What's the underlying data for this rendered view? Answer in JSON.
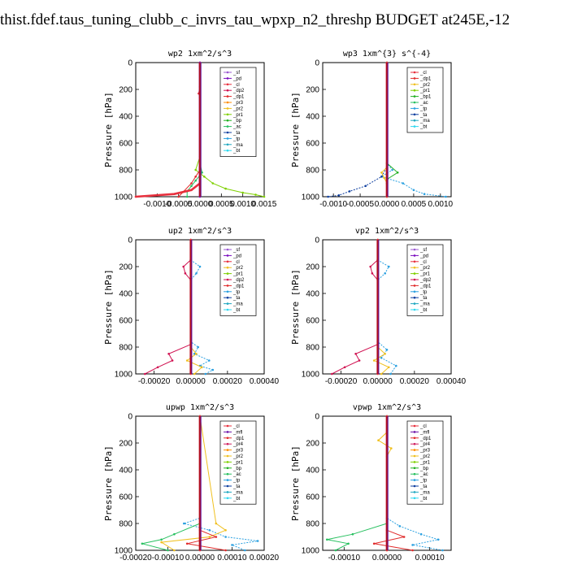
{
  "page": {
    "title": "thist.fdef.taus_tuning_clubb_c_invrs_tau_wpxp_n2_threshp  BUDGET at245E,-12"
  },
  "series_colors": {
    "_sf": "#9b59d0",
    "_pd": "#7a0dbf",
    "_cl": "#e8303e",
    "_dp2": "#d01050",
    "_dp1": "#e02a2a",
    "_pr3": "#ff8c00",
    "_pr2": "#f0c020",
    "_pr1": "#7fd000",
    "_bp": "#22b022",
    "_bp1": "#22b022",
    "_ac": "#28c060",
    "_tp": "#2aa0e0",
    "_ta": "#1040a0",
    "_ma": "#20a8c0",
    "_bt": "#30d8f0",
    "_mfl": "#6a10a8",
    "_pr4": "#d02060"
  },
  "chart_data": [
    {
      "type": "line",
      "title": "wp2  1xm^2/s^3",
      "ylabel": "Pressure [hPa]",
      "xlim": [
        -0.0015,
        0.0015
      ],
      "ylim": [
        1000,
        0
      ],
      "xticks": [
        -0.001,
        -0.0005,
        0.0,
        0.0005,
        0.001,
        0.0015
      ],
      "xtick_labels": [
        "-0.0010",
        "-0.0005",
        "0.0000",
        "0.0005",
        "0.0010",
        "0.0015"
      ],
      "yticks": [
        0,
        200,
        400,
        600,
        800,
        1000
      ],
      "legend": [
        "_sf",
        "_pd",
        "_cl",
        "_dp2",
        "_dp1",
        "_pr3",
        "_pr2",
        "_pr1",
        "_bp",
        "_ac",
        "_ta",
        "_tp",
        "_ma",
        "_bt"
      ],
      "legend_position": "top-right",
      "series": [
        {
          "name": "_pr1",
          "pressure": [
            0,
            700,
            800,
            850,
            900,
            940,
            970,
            985,
            1000
          ],
          "values": [
            0,
            0,
            -0.0001,
            0.0001,
            0.0003,
            0.0006,
            0.001,
            0.0013,
            0.0015
          ]
        },
        {
          "name": "_ac",
          "pressure": [
            0,
            750,
            820,
            880,
            920,
            960,
            1000
          ],
          "values": [
            0,
            0,
            5e-05,
            -0.0001,
            -0.0002,
            -0.0003,
            -0.0003
          ]
        },
        {
          "name": "_cl",
          "pressure": [
            0,
            800,
            900,
            950,
            980,
            1000
          ],
          "values": [
            0,
            0,
            0,
            -0.0002,
            -0.0006,
            -0.0015
          ]
        },
        {
          "name": "_dp1",
          "pressure": [
            0,
            180,
            230,
            260,
            800,
            850,
            900,
            1000
          ],
          "values": [
            0,
            0,
            -3e-05,
            0,
            0,
            -0.0001,
            -0.0002,
            -0.0005
          ]
        },
        {
          "name": "_pd",
          "pressure": [
            0,
            1000
          ],
          "values": [
            0,
            0
          ]
        }
      ]
    },
    {
      "type": "line",
      "title": "wp3  1xm^{3} s^{-4}",
      "ylabel": "Pressure [hPa]",
      "xlim": [
        -0.0012,
        0.0012
      ],
      "ylim": [
        1000,
        0
      ],
      "xticks": [
        -0.001,
        -0.0005,
        0.0,
        0.0005,
        0.001
      ],
      "xtick_labels": [
        "-0.0010",
        "-0.0005",
        "0.0000",
        "0.0005",
        "0.0010"
      ],
      "yticks": [
        0,
        200,
        400,
        600,
        800,
        1000
      ],
      "legend": [
        "_cl",
        "_dp1",
        "_pr2",
        "_pr1",
        "_bp1",
        "_ac",
        "_tp",
        "_ta",
        "_ma",
        "_bt"
      ],
      "legend_position": "top-right",
      "series": [
        {
          "name": "_tp",
          "pressure": [
            0,
            750,
            800,
            850,
            900,
            950,
            980,
            1000
          ],
          "values": [
            0,
            0,
            0.0001,
            -0.0001,
            0.0003,
            0.0005,
            0.0007,
            0.0011
          ]
        },
        {
          "name": "_ta",
          "pressure": [
            0,
            780,
            850,
            920,
            960,
            990,
            1000
          ],
          "values": [
            0,
            0,
            -0.0001,
            -0.0004,
            -0.0007,
            -0.0009,
            -0.0011
          ]
        },
        {
          "name": "_bp1",
          "pressure": [
            0,
            750,
            820,
            870,
            900,
            1000
          ],
          "values": [
            0,
            0,
            0.0002,
            0,
            0,
            0
          ]
        },
        {
          "name": "_pr2",
          "pressure": [
            0,
            780,
            820,
            860,
            900,
            1000
          ],
          "values": [
            0,
            0,
            -0.0001,
            -5e-05,
            0,
            0
          ]
        },
        {
          "name": "_cl",
          "pressure": [
            0,
            1000
          ],
          "values": [
            0,
            0
          ]
        }
      ]
    },
    {
      "type": "line",
      "title": "up2  1xm^2/s^3",
      "ylabel": "Pressure [hPa]",
      "xlim": [
        -0.0003,
        0.0004
      ],
      "ylim": [
        1000,
        0
      ],
      "xticks": [
        -0.0002,
        0.0,
        0.0002,
        0.0004
      ],
      "xtick_labels": [
        "-0.00020",
        "0.00000",
        "0.00020",
        "0.00040"
      ],
      "yticks": [
        0,
        200,
        400,
        600,
        800,
        1000
      ],
      "legend": [
        "_sf",
        "_pd",
        "_cl",
        "_pr2",
        "_pr1",
        "_dp2",
        "_dp1",
        "_tp",
        "_ta",
        "_ma",
        "_bt"
      ],
      "legend_position": "top-right",
      "series": [
        {
          "name": "_tp",
          "pressure": [
            0,
            150,
            200,
            250,
            300,
            760,
            800,
            850,
            900,
            940,
            970,
            1000
          ],
          "values": [
            0,
            0,
            5e-05,
            3e-05,
            0,
            0,
            4e-05,
            2e-05,
            0.0001,
            5e-05,
            0.00012,
            8e-05
          ]
        },
        {
          "name": "_dp2",
          "pressure": [
            0,
            150,
            200,
            250,
            300,
            780,
            850,
            900,
            950,
            1000
          ],
          "values": [
            0,
            0,
            -4e-05,
            -3e-05,
            0,
            0,
            -0.00012,
            -0.0001,
            -0.00018,
            -0.00025
          ]
        },
        {
          "name": "_pr2",
          "pressure": [
            0,
            800,
            850,
            900,
            950,
            1000
          ],
          "values": [
            0,
            0,
            3e-05,
            -2e-05,
            6e-05,
            2e-05
          ]
        },
        {
          "name": "_cl",
          "pressure": [
            0,
            1000
          ],
          "values": [
            0,
            0
          ]
        }
      ]
    },
    {
      "type": "line",
      "title": "vp2  1xm^2/s^3",
      "ylabel": "Pressure [hPa]",
      "xlim": [
        -0.0003,
        0.0004
      ],
      "ylim": [
        1000,
        0
      ],
      "xticks": [
        -0.0002,
        0.0,
        0.0002,
        0.0004
      ],
      "xtick_labels": [
        "-0.00020",
        "0.00000",
        "0.00020",
        "0.00040"
      ],
      "yticks": [
        0,
        200,
        400,
        600,
        800,
        1000
      ],
      "legend": [
        "_sf",
        "_pd",
        "_cl",
        "_pr2",
        "_pr1",
        "_dp2",
        "_dp1",
        "_tp",
        "_ta",
        "_ma",
        "_bt"
      ],
      "legend_position": "top-right",
      "series": [
        {
          "name": "_tp",
          "pressure": [
            0,
            150,
            200,
            250,
            300,
            760,
            820,
            880,
            940,
            1000
          ],
          "values": [
            0,
            0,
            6e-05,
            4e-05,
            0,
            0,
            5e-05,
            2e-05,
            0.0001,
            7e-05
          ]
        },
        {
          "name": "_dp2",
          "pressure": [
            0,
            150,
            200,
            250,
            300,
            780,
            850,
            900,
            950,
            1000
          ],
          "values": [
            0,
            0,
            -4e-05,
            -3e-05,
            0,
            0,
            -0.00012,
            -0.0001,
            -0.00018,
            -0.00025
          ]
        },
        {
          "name": "_pr2",
          "pressure": [
            0,
            800,
            850,
            900,
            950,
            1000
          ],
          "values": [
            0,
            0,
            4e-05,
            -2e-05,
            6e-05,
            2e-05
          ]
        },
        {
          "name": "_cl",
          "pressure": [
            0,
            1000
          ],
          "values": [
            0,
            0
          ]
        }
      ]
    },
    {
      "type": "line",
      "title": "upwp  1xm^2/s^3",
      "ylabel": "Pressure [hPa]",
      "xlim": [
        -0.0002,
        0.0002
      ],
      "ylim": [
        1000,
        0
      ],
      "xticks": [
        -0.0002,
        -0.0001,
        0.0,
        0.0001,
        0.0002
      ],
      "xtick_labels": [
        "-0.00020",
        "-0.00010",
        "0.00000",
        "0.00010",
        "0.00020"
      ],
      "yticks": [
        0,
        200,
        400,
        600,
        800,
        1000
      ],
      "legend": [
        "_cl",
        "_mfl",
        "_dp1",
        "_pr4",
        "_pr3",
        "_pr2",
        "_pr1",
        "_bp",
        "_ac",
        "_tp",
        "_ta",
        "_ma",
        "_bt"
      ],
      "legend_position": "top-right",
      "series": [
        {
          "name": "_tp",
          "pressure": [
            0,
            760,
            800,
            850,
            900,
            930,
            960,
            1000
          ],
          "values": [
            0,
            0,
            -5e-05,
            3e-05,
            8e-05,
            0.00018,
            0.0001,
            0.00014
          ]
        },
        {
          "name": "_ac",
          "pressure": [
            0,
            800,
            880,
            920,
            950,
            1000
          ],
          "values": [
            0,
            0,
            -8e-05,
            -0.00012,
            -0.00018,
            -0.0001
          ]
        },
        {
          "name": "_pr2",
          "pressure": [
            0,
            800,
            850,
            900,
            940,
            1000
          ],
          "values": [
            0,
            5e-05,
            8e-05,
            3e-05,
            -0.00012,
            -8e-05
          ]
        },
        {
          "name": "_dp1",
          "pressure": [
            0,
            850,
            900,
            950,
            1000
          ],
          "values": [
            0,
            0,
            5e-05,
            -4e-05,
            8e-05
          ]
        },
        {
          "name": "_cl",
          "pressure": [
            0,
            1000
          ],
          "values": [
            0,
            0
          ]
        }
      ]
    },
    {
      "type": "line",
      "title": "vpwp  1xm^2/s^3",
      "ylabel": "Pressure [hPa]",
      "xlim": [
        -0.00015,
        0.00015
      ],
      "ylim": [
        1000,
        0
      ],
      "xticks": [
        -0.0001,
        0.0,
        0.0001
      ],
      "xtick_labels": [
        "-0.00010",
        "0.00000",
        "0.00010"
      ],
      "yticks": [
        0,
        200,
        400,
        600,
        800,
        1000
      ],
      "legend": [
        "_cl",
        "_mfl",
        "_dp1",
        "_pr4",
        "_pr3",
        "_pr2",
        "_pr1",
        "_bp",
        "_ac",
        "_tp",
        "_ta",
        "_ma",
        "_bt"
      ],
      "legend_position": "top-right",
      "series": [
        {
          "name": "_tp",
          "pressure": [
            0,
            760,
            820,
            880,
            920,
            960,
            1000
          ],
          "values": [
            0,
            0,
            3e-05,
            8e-05,
            0.00012,
            6e-05,
            0.00013
          ]
        },
        {
          "name": "_ac",
          "pressure": [
            0,
            800,
            880,
            920,
            950,
            1000
          ],
          "values": [
            0,
            0,
            -8e-05,
            -0.00014,
            -9e-05,
            -0.00012
          ]
        },
        {
          "name": "_pr2",
          "pressure": [
            0,
            120,
            180,
            240,
            300,
            1000
          ],
          "values": [
            0,
            0,
            -2e-05,
            1e-05,
            0,
            0
          ]
        },
        {
          "name": "_dp1",
          "pressure": [
            0,
            850,
            900,
            950,
            1000
          ],
          "values": [
            0,
            0,
            4e-05,
            -3e-05,
            6e-05
          ]
        },
        {
          "name": "_cl",
          "pressure": [
            0,
            1000
          ],
          "values": [
            0,
            0
          ]
        }
      ]
    }
  ]
}
